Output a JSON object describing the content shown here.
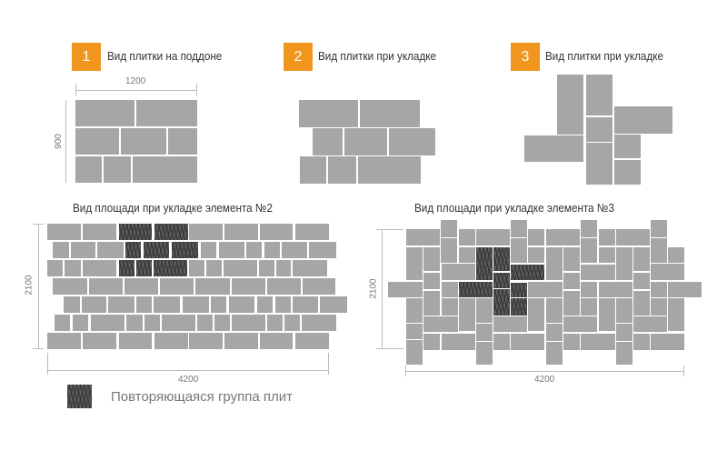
{
  "colors": {
    "badge": "#f0961e",
    "tile": "#a6a6a6",
    "repeating_group": "#4b4b4b",
    "dimension_line": "#bbbbbb"
  },
  "sections": [
    {
      "number": "1",
      "title": "Вид плитки на поддоне",
      "width_label": "1200",
      "height_label": "900"
    },
    {
      "number": "2",
      "title": "Вид плитки при укладке"
    },
    {
      "number": "3",
      "title": "Вид плитки при укладке"
    }
  ],
  "areas": [
    {
      "title": "Вид площади при укладке элемента №2",
      "width_label": "4200",
      "height_label": "2100"
    },
    {
      "title": "Вид площади при укладке элемента №3",
      "width_label": "4200",
      "height_label": "2100"
    }
  ],
  "legend": {
    "label": "Повторяющаяся группа плит"
  }
}
